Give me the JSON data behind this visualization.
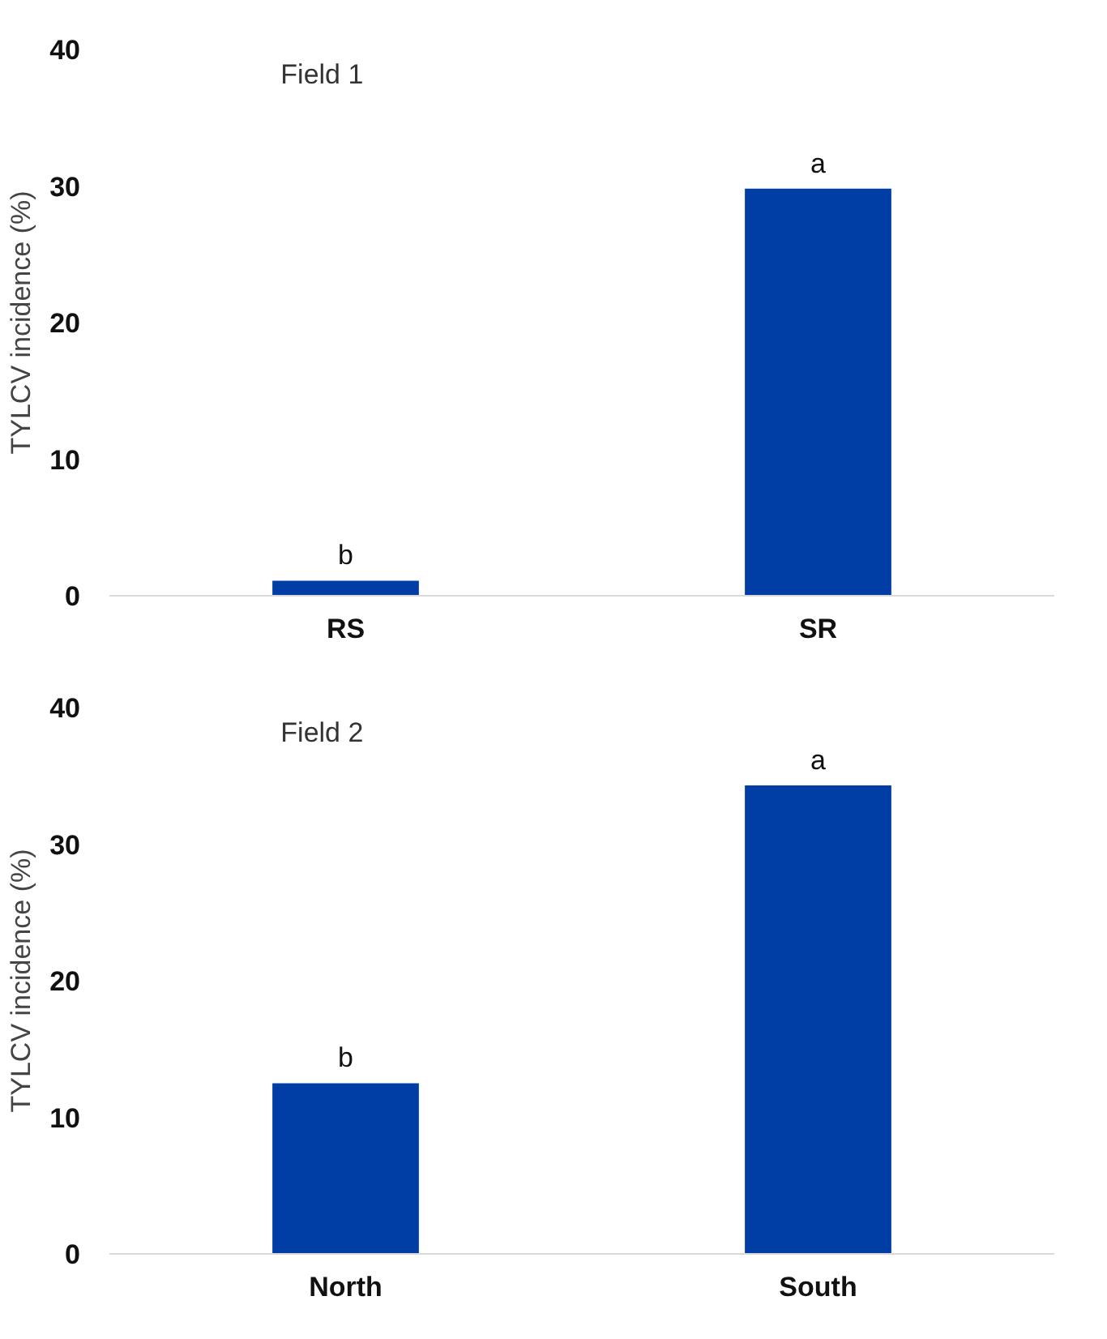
{
  "chart_data": [
    {
      "type": "bar",
      "title": "Field 1",
      "ylabel": "TYLCV incidence (%)",
      "categories": [
        "RS",
        "SR"
      ],
      "values": [
        1.1,
        29.8
      ],
      "color": "#003da5",
      "ylim": [
        0,
        40
      ],
      "yticks": [
        0,
        10,
        20,
        30,
        40
      ],
      "grid": false,
      "annotations": [
        {
          "text": "b",
          "x": "RS",
          "y": 1.1
        },
        {
          "text": "a",
          "x": "SR",
          "y": 29.8
        }
      ]
    },
    {
      "type": "bar",
      "title": "Field 2",
      "ylabel": "TYLCV incidence (%)",
      "categories": [
        "North",
        "South"
      ],
      "values": [
        12.5,
        34.3
      ],
      "color": "#003da5",
      "ylim": [
        0,
        40
      ],
      "yticks": [
        0,
        10,
        20,
        30,
        40
      ],
      "grid": false,
      "annotations": [
        {
          "text": "b",
          "x": "North",
          "y": 12.5
        },
        {
          "text": "a",
          "x": "South",
          "y": 34.3
        }
      ]
    }
  ]
}
